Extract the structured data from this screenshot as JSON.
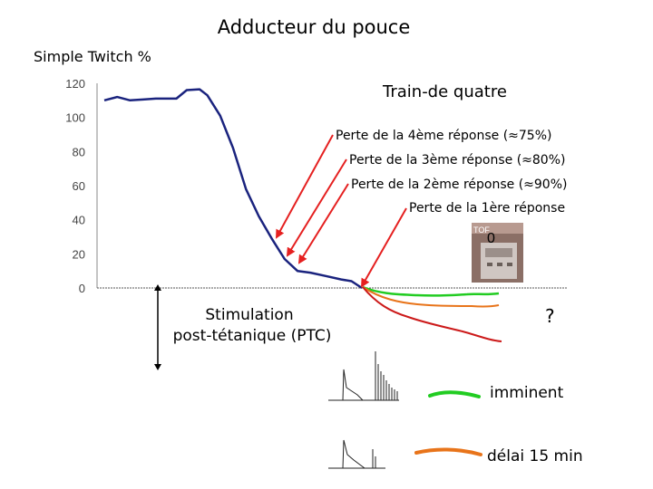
{
  "chart_data": {
    "type": "line",
    "title": "Adducteur du pouce",
    "ylabel": "Simple Twitch %",
    "ylim": [
      0,
      120
    ],
    "y_ticks": [
      "120",
      "100",
      "80",
      "60",
      "40",
      "20",
      "0"
    ],
    "series": [
      {
        "name": "",
        "color": "#1a237e",
        "values": [
          [
            0,
            110
          ],
          [
            0.5,
            112
          ],
          [
            1.0,
            110
          ],
          [
            1.5,
            110.5
          ],
          [
            2.0,
            111
          ],
          [
            2.8,
            111
          ],
          [
            3.2,
            116
          ],
          [
            3.7,
            116.5
          ],
          [
            4.0,
            113
          ],
          [
            4.5,
            101
          ],
          [
            5.0,
            82
          ],
          [
            5.5,
            58
          ],
          [
            6.0,
            42
          ],
          [
            6.5,
            29
          ],
          [
            7.0,
            17
          ],
          [
            7.5,
            10
          ],
          [
            8.0,
            9
          ],
          [
            8.6,
            7
          ],
          [
            9.2,
            5
          ],
          [
            9.6,
            4
          ],
          [
            10.0,
            0
          ]
        ]
      }
    ],
    "annotations": {
      "tof_header": "Train-de quatre",
      "loss_4": "Perte de la 4ème réponse (≈75%)",
      "loss_3": "Perte de la 3ème réponse (≈80%)",
      "loss_2": "Perte de la 2ème réponse (≈90%)",
      "loss_1": "Perte de la 1ère réponse",
      "tof_value": "0",
      "device_label": "TOF",
      "ptc_label_line1": "Stimulation",
      "ptc_label_line2": "post-tétanique (PTC)",
      "question": "?",
      "legend_imminent": "imminent",
      "legend_delay": "délai 15 min"
    },
    "colors": {
      "main_curve": "#1a237e",
      "arrows": "#e52020",
      "green": "#22cc22",
      "orange": "#e8741a",
      "red": "#cc1a1a"
    }
  }
}
